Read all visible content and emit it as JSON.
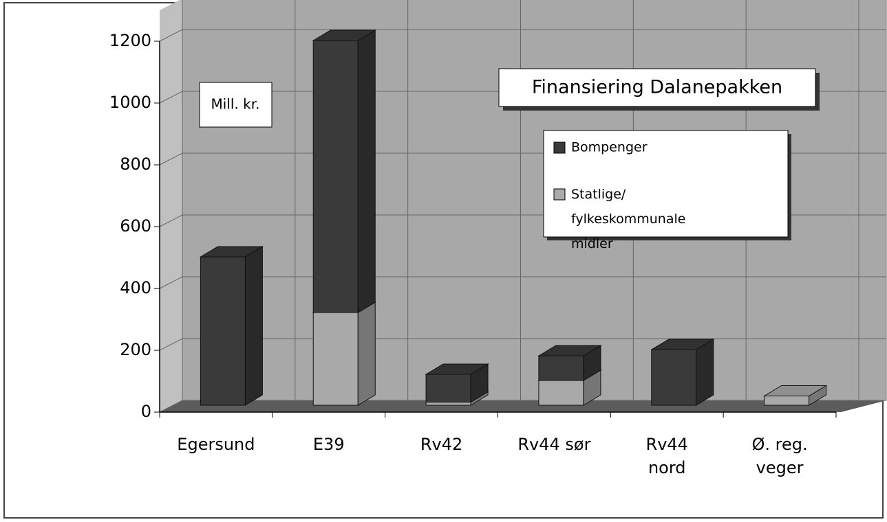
{
  "chart_data": {
    "type": "bar",
    "stacked": true,
    "title": "Finansiering Dalanepakken",
    "ylabel": "Mill. kr.",
    "categories": [
      "Egersund",
      "E39",
      "Rv42",
      "Rv44 sør",
      "Rv44 nord",
      "Ø. reg. veger"
    ],
    "series": [
      {
        "name": "Bompenger",
        "color": "#3a3a3a",
        "values": [
          480,
          880,
          90,
          80,
          180,
          0
        ]
      },
      {
        "name": "Statlige/ fylkeskommunale midler",
        "color": "#a9a9a9",
        "values": [
          0,
          300,
          10,
          80,
          0,
          30
        ]
      }
    ],
    "ylim": [
      0,
      1200
    ],
    "yticks": [
      0,
      200,
      400,
      600,
      800,
      1000,
      1200
    ],
    "grid": true
  }
}
